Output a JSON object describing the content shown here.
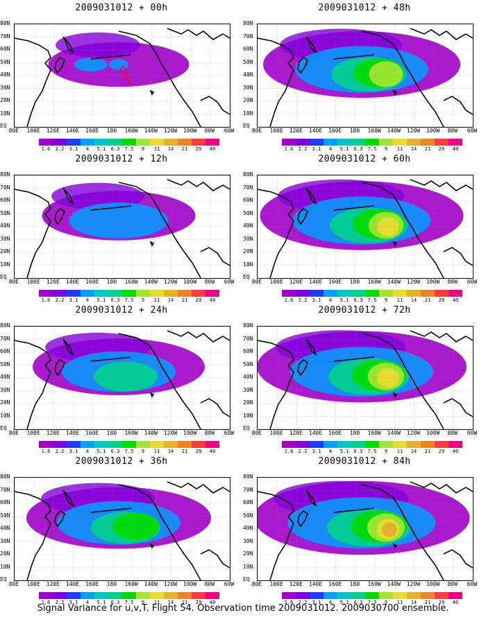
{
  "panels": [
    {
      "title": "2009031012 + 00h",
      "intensity": 0.25,
      "coverage": 0.35,
      "has_flight_track": true
    },
    {
      "title": "2009031012 + 12h",
      "intensity": 0.35,
      "coverage": 0.45,
      "has_flight_track": false
    },
    {
      "title": "2009031012 + 24h",
      "intensity": 0.5,
      "coverage": 0.6,
      "has_flight_track": false
    },
    {
      "title": "2009031012 + 36h",
      "intensity": 0.6,
      "coverage": 0.7,
      "has_flight_track": false
    },
    {
      "title": "2009031012 + 48h",
      "intensity": 0.7,
      "coverage": 0.8,
      "has_flight_track": false
    },
    {
      "title": "2009031012 + 60h",
      "intensity": 0.78,
      "coverage": 0.85,
      "has_flight_track": false
    },
    {
      "title": "2009031012 + 72h",
      "intensity": 0.85,
      "coverage": 0.9,
      "has_flight_track": false
    },
    {
      "title": "2009031012 + 84h",
      "intensity": 0.9,
      "coverage": 0.95,
      "has_flight_track": false
    }
  ],
  "lat_labels": [
    "80N",
    "70N",
    "60N",
    "50N",
    "40N",
    "30N",
    "20N",
    "10N",
    "EQ"
  ],
  "lon_labels": [
    "80E",
    "100E",
    "120E",
    "140E",
    "160E",
    "180",
    "160W",
    "140W",
    "120W",
    "100W",
    "80W",
    "60W"
  ],
  "colorbar": {
    "labels": [
      "1.6",
      "2.2",
      "3.1",
      "4",
      "5.1",
      "6.3",
      "7.5",
      "9",
      "11",
      "14",
      "21",
      "29",
      "40"
    ],
    "colors": [
      "#a000c8",
      "#8200dc",
      "#1e3cff",
      "#00a0ff",
      "#00c8c8",
      "#00d28c",
      "#00dc00",
      "#a0e632",
      "#e6dc32",
      "#e6af2d",
      "#f08228",
      "#fa3c3c",
      "#f00082"
    ]
  },
  "footer": "Signal Variance for u,v,T. Flight 54. Observation time 2009031012. 2009030700 ensemble."
}
